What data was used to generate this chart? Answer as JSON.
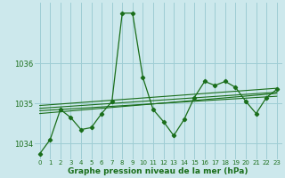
{
  "xlabel": "Graphe pression niveau de la mer (hPa)",
  "background_color": "#cce8ec",
  "grid_color": "#9ecdd4",
  "line_color": "#1a6e1a",
  "ylim": [
    1033.6,
    1037.5
  ],
  "xlim": [
    -0.5,
    23.5
  ],
  "yticks": [
    1034,
    1035,
    1036
  ],
  "xticks": [
    0,
    1,
    2,
    3,
    4,
    5,
    6,
    7,
    8,
    9,
    10,
    11,
    12,
    13,
    14,
    15,
    16,
    17,
    18,
    19,
    20,
    21,
    22,
    23
  ],
  "main_data": [
    1033.75,
    1034.1,
    1034.85,
    1034.65,
    1034.35,
    1034.4,
    1034.75,
    1035.05,
    1037.25,
    1037.25,
    1035.65,
    1034.85,
    1034.55,
    1034.2,
    1034.6,
    1035.15,
    1035.55,
    1035.45,
    1035.55,
    1035.4,
    1035.05,
    1034.75,
    1035.15,
    1035.35
  ],
  "trend_lines": [
    {
      "x": [
        0,
        23
      ],
      "y": [
        1034.75,
        1035.25
      ]
    },
    {
      "x": [
        0,
        23
      ],
      "y": [
        1034.82,
        1035.18
      ]
    },
    {
      "x": [
        0,
        23
      ],
      "y": [
        1034.88,
        1035.28
      ]
    },
    {
      "x": [
        0,
        23
      ],
      "y": [
        1034.95,
        1035.38
      ]
    }
  ]
}
